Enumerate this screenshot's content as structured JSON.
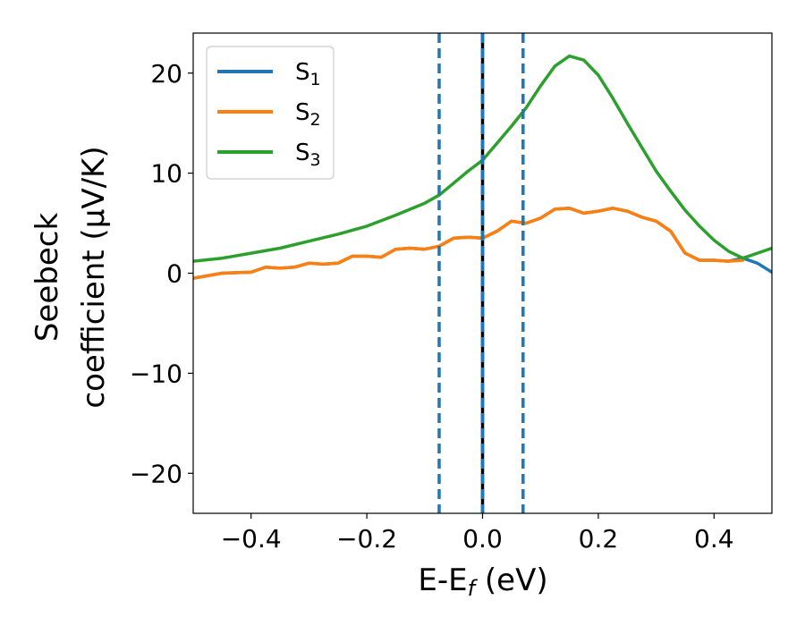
{
  "chart_data": {
    "type": "line",
    "xlabel": "E-E",
    "xlabel_sub": "f",
    "xlabel_unit": " (eV)",
    "ylabel_line1": "Seebeck",
    "ylabel_line2": "coefficient  (μV/K)",
    "xlim": [
      -0.5,
      0.5
    ],
    "ylim": [
      -24,
      24
    ],
    "xticks": [
      -0.4,
      -0.2,
      0.0,
      0.2,
      0.4
    ],
    "xtick_labels": [
      "−0.4",
      "−0.2",
      "0.0",
      "0.2",
      "0.4"
    ],
    "yticks": [
      -20,
      -10,
      0,
      10,
      20
    ],
    "ytick_labels": [
      "−20",
      "−10",
      "0",
      "10",
      "20"
    ],
    "legend_position": "top-left",
    "grid": false,
    "vlines": [
      {
        "x": -0.075,
        "style": "dashed",
        "color": "#1f77b4"
      },
      {
        "x": 0.0,
        "style": "solid",
        "color": "#000000"
      },
      {
        "x": 0.0,
        "style": "dashed",
        "color": "#1f77b4"
      },
      {
        "x": 0.07,
        "style": "dashed",
        "color": "#1f77b4"
      }
    ],
    "series": [
      {
        "name": "S",
        "sub": "1",
        "color": "#1f77b4",
        "x": [
          -0.5,
          -0.45,
          -0.4,
          -0.375,
          -0.35,
          -0.325,
          -0.3,
          -0.275,
          -0.25,
          -0.225,
          -0.2,
          -0.175,
          -0.15,
          -0.125,
          -0.1,
          -0.075,
          -0.05,
          -0.025,
          0.0,
          0.025,
          0.05,
          0.075,
          0.1,
          0.125,
          0.15,
          0.175,
          0.2,
          0.225,
          0.25,
          0.275,
          0.3,
          0.325,
          0.35,
          0.375,
          0.4,
          0.425,
          0.45,
          0.475,
          0.5
        ],
        "y": [
          -0.5,
          0.0,
          0.1,
          0.6,
          0.5,
          0.6,
          1.0,
          0.9,
          1.0,
          1.7,
          1.7,
          1.6,
          2.4,
          2.5,
          2.4,
          2.7,
          3.5,
          3.6,
          3.5,
          4.2,
          5.2,
          5.0,
          5.5,
          6.4,
          6.5,
          6.0,
          6.2,
          6.5,
          6.2,
          5.6,
          5.2,
          4.2,
          2.0,
          1.3,
          1.3,
          1.2,
          1.5,
          1.0,
          0.1
        ]
      },
      {
        "name": "S",
        "sub": "2",
        "color": "#ff7f0e",
        "x": [
          -0.5,
          -0.45,
          -0.4,
          -0.375,
          -0.35,
          -0.325,
          -0.3,
          -0.275,
          -0.25,
          -0.225,
          -0.2,
          -0.175,
          -0.15,
          -0.125,
          -0.1,
          -0.075,
          -0.05,
          -0.025,
          0.0,
          0.025,
          0.05,
          0.075,
          0.1,
          0.125,
          0.15,
          0.175,
          0.2,
          0.225,
          0.25,
          0.275,
          0.3,
          0.325,
          0.35,
          0.375,
          0.4,
          0.425,
          0.45
        ],
        "y": [
          -0.5,
          0.0,
          0.1,
          0.6,
          0.5,
          0.6,
          1.0,
          0.9,
          1.0,
          1.7,
          1.7,
          1.6,
          2.4,
          2.5,
          2.4,
          2.7,
          3.5,
          3.6,
          3.5,
          4.2,
          5.2,
          5.0,
          5.5,
          6.4,
          6.5,
          6.0,
          6.2,
          6.5,
          6.2,
          5.6,
          5.2,
          4.2,
          2.0,
          1.3,
          1.3,
          1.2,
          1.3
        ]
      },
      {
        "name": "S",
        "sub": "3",
        "color": "#2ca02c",
        "x": [
          -0.5,
          -0.45,
          -0.4,
          -0.35,
          -0.3,
          -0.25,
          -0.2,
          -0.15,
          -0.1,
          -0.075,
          -0.05,
          -0.025,
          0.0,
          0.025,
          0.05,
          0.075,
          0.1,
          0.125,
          0.15,
          0.175,
          0.2,
          0.225,
          0.25,
          0.275,
          0.3,
          0.325,
          0.35,
          0.375,
          0.4,
          0.425,
          0.45,
          0.475,
          0.5
        ],
        "y": [
          1.2,
          1.5,
          2.0,
          2.5,
          3.2,
          3.9,
          4.7,
          5.8,
          7.0,
          7.8,
          9.0,
          10.2,
          11.3,
          13.0,
          14.7,
          16.5,
          18.7,
          20.7,
          21.7,
          21.3,
          19.8,
          17.5,
          15.0,
          12.6,
          10.2,
          8.2,
          6.3,
          4.7,
          3.3,
          2.2,
          1.5,
          2.0,
          2.5
        ]
      }
    ]
  }
}
